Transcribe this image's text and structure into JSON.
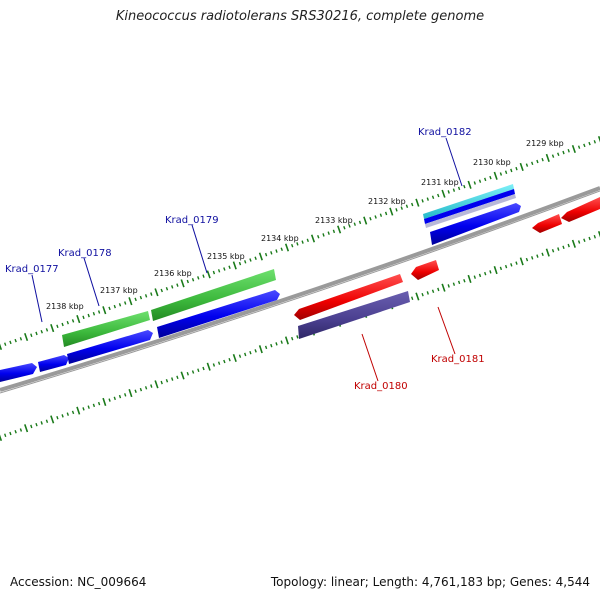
{
  "title": "Kineococcus radiotolerans SRS30216, complete genome",
  "footer": {
    "accession": "Accession: NC_009664",
    "stats": "Topology: linear; Length: 4,761,183 bp; Genes: 4,544"
  },
  "colors": {
    "tick": "#1a7a1a",
    "backbone": "#808080",
    "forward_gene": "#0000ee",
    "rna_green": "#3cb83c",
    "reverse_gene": "#ee0000",
    "reverse_dark": "#4a3f8f",
    "cyan": "#22c8d8",
    "label_blue": "#1010a0",
    "label_red": "#c00000"
  },
  "tick_labels": [
    "2129 kbp",
    "2130 kbp",
    "2131 kbp",
    "2132 kbp",
    "2133 kbp",
    "2134 kbp",
    "2135 kbp",
    "2136 kbp",
    "2137 kbp",
    "2138 kbp"
  ],
  "gene_labels": {
    "forward": [
      "Krad_0177",
      "Krad_0178",
      "Krad_0179",
      "Krad_0182"
    ],
    "reverse": [
      "Krad_0180",
      "Krad_0181"
    ]
  }
}
